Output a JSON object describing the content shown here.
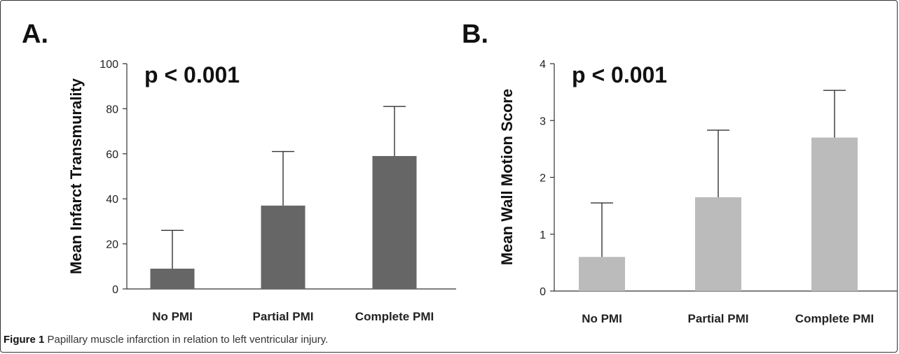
{
  "caption": {
    "label": "Figure 1",
    "text": "Papillary muscle infarction in relation to left ventricular injury."
  },
  "colors": {
    "panel_a_bar": "#666666",
    "panel_b_bar": "#bbbbbb",
    "axis": "#333333"
  },
  "chart_data": [
    {
      "type": "bar",
      "panel": "A.",
      "annotation": "p < 0.001",
      "ylabel": "Mean Infarct Transmurality",
      "xlabel": "",
      "categories": [
        "No PMI",
        "Partial PMI",
        "Complete PMI"
      ],
      "values": [
        9,
        37,
        59
      ],
      "error_upper": [
        26,
        61,
        81
      ],
      "ylim": [
        0,
        100
      ],
      "yticks": [
        0,
        20,
        40,
        60,
        80,
        100
      ],
      "grid": false,
      "bar_color": "#666666"
    },
    {
      "type": "bar",
      "panel": "B.",
      "annotation": "p < 0.001",
      "ylabel": "Mean Wall Motion Score",
      "xlabel": "",
      "categories": [
        "No PMI",
        "Partial PMI",
        "Complete PMI"
      ],
      "values": [
        0.6,
        1.65,
        2.7
      ],
      "error_upper": [
        1.55,
        2.83,
        3.53
      ],
      "ylim": [
        0,
        4
      ],
      "yticks": [
        0,
        1,
        2,
        3,
        4
      ],
      "grid": false,
      "bar_color": "#bbbbbb"
    }
  ]
}
